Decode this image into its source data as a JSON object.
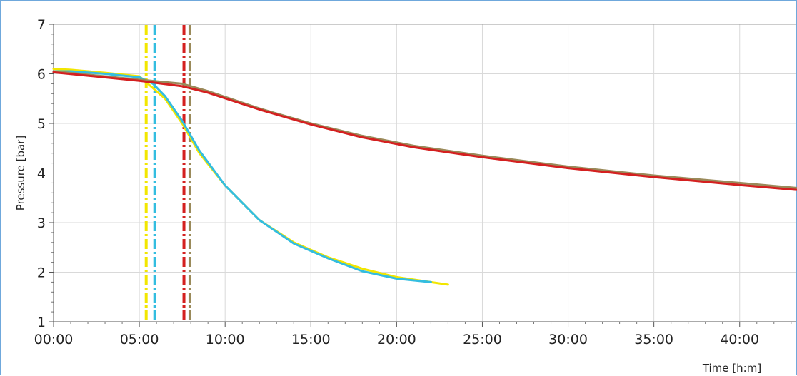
{
  "chart_data": {
    "type": "line",
    "title": "",
    "xlabel": "Time [h:m]",
    "ylabel": "Pressure [bar]",
    "xlim": [
      0,
      43.3
    ],
    "ylim": [
      1,
      7
    ],
    "grid": true,
    "x_ticks": [
      {
        "value": 0,
        "label": "00:00"
      },
      {
        "value": 5,
        "label": "05:00"
      },
      {
        "value": 10,
        "label": "10:00"
      },
      {
        "value": 15,
        "label": "15:00"
      },
      {
        "value": 20,
        "label": "20:00"
      },
      {
        "value": 25,
        "label": "25:00"
      },
      {
        "value": 30,
        "label": "30:00"
      },
      {
        "value": 35,
        "label": "35:00"
      },
      {
        "value": 40,
        "label": "40:00"
      }
    ],
    "y_ticks": [
      {
        "value": 1,
        "label": "1"
      },
      {
        "value": 2,
        "label": "2"
      },
      {
        "value": 3,
        "label": "3"
      },
      {
        "value": 4,
        "label": "4"
      },
      {
        "value": 5,
        "label": "5"
      },
      {
        "value": 6,
        "label": "6"
      },
      {
        "value": 7,
        "label": "7"
      }
    ],
    "series": [
      {
        "color": "#f2e600",
        "x": [
          0,
          1,
          3,
          5,
          5.5,
          6.5,
          7.5,
          8.5,
          10,
          12,
          14,
          16,
          18,
          20,
          22,
          23
        ],
        "y": [
          6.1,
          6.08,
          6.02,
          5.95,
          5.8,
          5.5,
          5.0,
          4.4,
          3.75,
          3.05,
          2.6,
          2.3,
          2.07,
          1.9,
          1.8,
          1.75
        ]
      },
      {
        "color": "#33bde0",
        "x": [
          0,
          1,
          3,
          5,
          5.8,
          6.5,
          7.5,
          8.5,
          10,
          12,
          14,
          16,
          18,
          20,
          22
        ],
        "y": [
          6.05,
          6.05,
          6.0,
          5.93,
          5.8,
          5.55,
          5.05,
          4.45,
          3.75,
          3.05,
          2.58,
          2.28,
          2.02,
          1.87,
          1.8
        ]
      },
      {
        "color": "#9a8a5a",
        "x": [
          0,
          5,
          7.5,
          9,
          12,
          15,
          18,
          21,
          25,
          30,
          35,
          40,
          43.3
        ],
        "y": [
          6.05,
          5.88,
          5.8,
          5.65,
          5.3,
          5.0,
          4.75,
          4.55,
          4.35,
          4.13,
          3.95,
          3.8,
          3.7
        ]
      },
      {
        "color": "#d42020",
        "x": [
          0,
          5,
          7.5,
          9,
          12,
          15,
          18,
          21,
          25,
          30,
          35,
          40,
          43.3
        ],
        "y": [
          6.03,
          5.86,
          5.75,
          5.62,
          5.28,
          4.98,
          4.72,
          4.52,
          4.32,
          4.1,
          3.92,
          3.76,
          3.66
        ]
      }
    ],
    "markers": [
      {
        "x": 5.4,
        "color": "#f2e600",
        "style": "dash-dot"
      },
      {
        "x": 5.9,
        "color": "#33bde0",
        "style": "dash-dot"
      },
      {
        "x": 7.6,
        "color": "#d42020",
        "style": "dash-dot"
      },
      {
        "x": 7.95,
        "color": "#9a8a5a",
        "style": "dash-dot"
      }
    ]
  }
}
